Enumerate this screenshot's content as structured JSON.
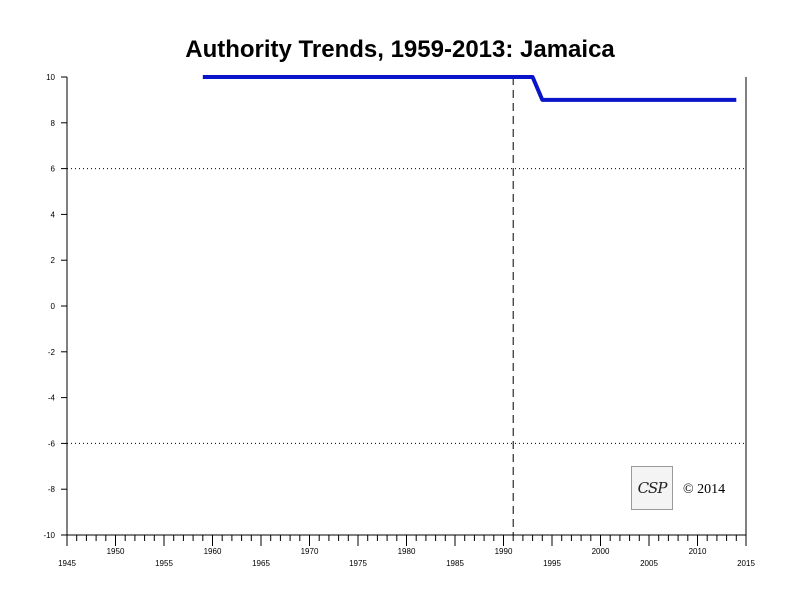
{
  "chart_data": {
    "type": "line",
    "title": "Authority Trends, 1959-2013: Jamaica",
    "xlabel": "",
    "ylabel": "",
    "xlim": [
      1945,
      2015
    ],
    "ylim": [
      -10,
      10
    ],
    "x_ticks_upper": [
      "1950",
      "1960",
      "1970",
      "1980",
      "1990",
      "2000",
      "2010"
    ],
    "x_ticks_lower": [
      "1945",
      "1955",
      "1965",
      "1975",
      "1985",
      "1995",
      "2005",
      "2015"
    ],
    "y_ticks": [
      "10",
      "8",
      "6",
      "4",
      "2",
      "0",
      "-2",
      "-4",
      "-6",
      "-8",
      "-10"
    ],
    "reference_lines_y": [
      6,
      -6
    ],
    "vertical_marker_x": 1991,
    "series": [
      {
        "color": "#0a14c8",
        "x": [
          1959,
          1993,
          1994,
          2014
        ],
        "y": [
          10,
          10,
          9,
          9
        ]
      }
    ],
    "grid": false
  },
  "logo": {
    "text": "CSP"
  },
  "copyright": "© 2014"
}
